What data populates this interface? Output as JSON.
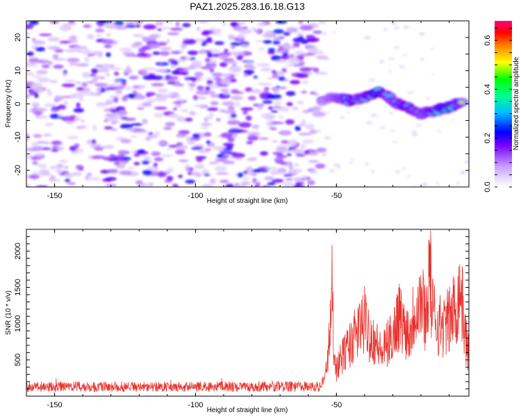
{
  "chart_data": [
    {
      "type": "heatmap",
      "title": "PAZ1.2025.283.16.18.G13",
      "xlabel": "Height of straight line (km)",
      "ylabel": "Frequency (Hz)",
      "xlim": [
        -160,
        -3
      ],
      "ylim": [
        -25,
        25
      ],
      "x_ticks": [
        -150,
        -100,
        -50
      ],
      "x_tick_labels": [
        "-150",
        "-100",
        "-50"
      ],
      "y_ticks": [
        20,
        10,
        0,
        -10,
        -20
      ],
      "y_tick_labels": [
        "20",
        "10",
        "0",
        "-10",
        "-20"
      ],
      "noise_region_x": [
        -160,
        -55
      ],
      "signal_track": [
        {
          "x": -55,
          "y": 1,
          "amp": 0.25
        },
        {
          "x": -50,
          "y": 2,
          "amp": 0.35
        },
        {
          "x": -45,
          "y": 1,
          "amp": 0.5
        },
        {
          "x": -40,
          "y": 2,
          "amp": 0.45
        },
        {
          "x": -35,
          "y": 4,
          "amp": 0.55
        },
        {
          "x": -30,
          "y": 1,
          "amp": 0.4
        },
        {
          "x": -25,
          "y": -1,
          "amp": 0.5
        },
        {
          "x": -20,
          "y": -3,
          "amp": 0.4
        },
        {
          "x": -15,
          "y": -2,
          "amp": 0.5
        },
        {
          "x": -10,
          "y": -1,
          "amp": 0.55
        },
        {
          "x": -5,
          "y": 1,
          "amp": 0.45
        }
      ],
      "colorbar": {
        "label": "Normalized spectral amplitude",
        "range": [
          0.0,
          0.68
        ],
        "ticks": [
          0.0,
          0.2,
          0.4,
          0.6
        ],
        "tick_labels": [
          "0.0",
          "0.2",
          "0.4",
          "0.6"
        ]
      }
    },
    {
      "type": "line",
      "xlabel": "Height of straight line (km)",
      "ylabel": "SNR (10 * v/v)",
      "xlim": [
        -160,
        -3
      ],
      "ylim": [
        0,
        2300
      ],
      "x_ticks": [
        -150,
        -100,
        -50
      ],
      "x_tick_labels": [
        "-150",
        "-100",
        "-50"
      ],
      "y_ticks": [
        500,
        1000,
        1500,
        2000
      ],
      "y_tick_labels": [
        "500",
        "1000",
        "1500",
        "2000"
      ],
      "color": "#e8322d",
      "series": [
        {
          "name": "SNR",
          "x": [
            -160,
            -140,
            -130,
            -120,
            -100,
            -80,
            -60,
            -56,
            -54,
            -53,
            -52,
            -51.5,
            -51,
            -50,
            -48,
            -46,
            -44,
            -42,
            -40,
            -38,
            -36,
            -34,
            -32,
            -30,
            -28,
            -26,
            -24,
            -22,
            -20,
            -18,
            -17,
            -16,
            -14,
            -12,
            -10,
            -8,
            -7,
            -6,
            -5,
            -4,
            -3
          ],
          "values": [
            150,
            140,
            190,
            150,
            140,
            145,
            150,
            160,
            300,
            700,
            1200,
            1850,
            900,
            450,
            650,
            800,
            950,
            1100,
            1250,
            1000,
            900,
            700,
            850,
            1000,
            1350,
            1150,
            1050,
            1500,
            1600,
            1300,
            2250,
            1400,
            1200,
            1150,
            1250,
            1450,
            1550,
            1850,
            1300,
            900,
            650
          ]
        }
      ]
    }
  ]
}
